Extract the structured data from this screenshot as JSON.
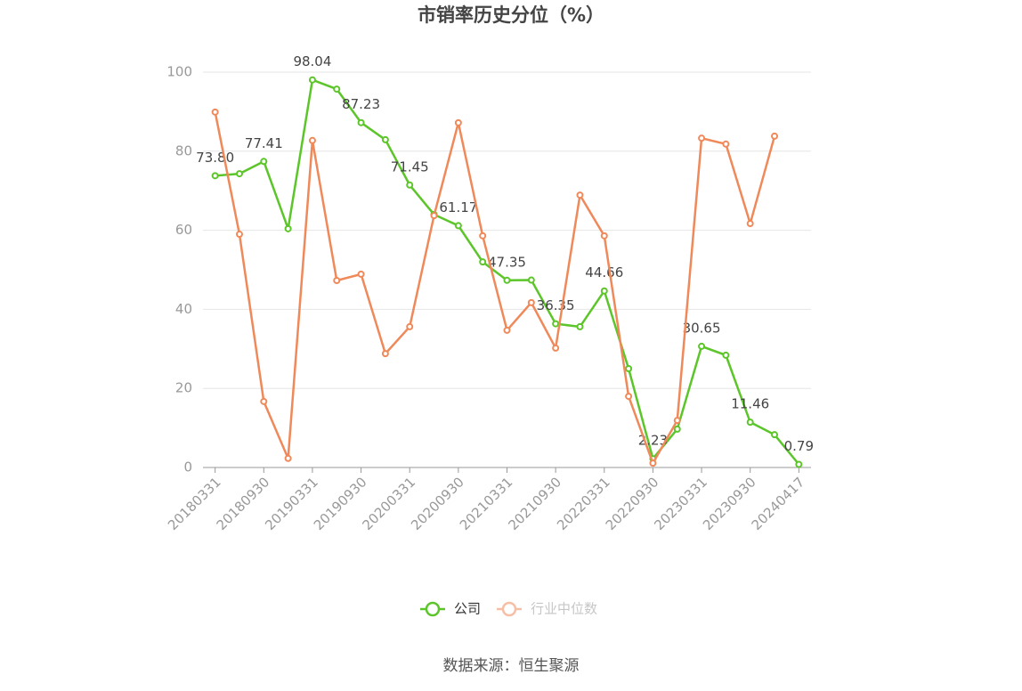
{
  "chart_data": {
    "type": "line",
    "title": "市销率历史分位（%）",
    "source": "数据来源：恒生聚源",
    "categories": [
      "20180331",
      null,
      "20180930",
      null,
      "20190331",
      null,
      "20190930",
      null,
      "20200331",
      null,
      "20200930",
      null,
      "20210331",
      null,
      "20210930",
      null,
      "20220331",
      null,
      "20220930",
      null,
      "20230331",
      null,
      "20230930",
      null,
      "20240417"
    ],
    "ylim": [
      0,
      100
    ],
    "yticks": [
      0,
      20,
      40,
      60,
      80,
      100
    ],
    "grid": true,
    "legend": "bottom",
    "series": [
      {
        "name": "公司",
        "color": "#5cc52a",
        "values": [
          73.8,
          74.3,
          77.41,
          60.4,
          98.04,
          95.7,
          87.23,
          82.9,
          71.45,
          64.0,
          61.17,
          52.0,
          47.35,
          47.4,
          36.35,
          35.6,
          44.66,
          25.0,
          2.23,
          9.7,
          30.65,
          28.4,
          11.46,
          8.3,
          0.79
        ],
        "value_labels": [
          "73.80",
          null,
          "77.41",
          null,
          "98.04",
          null,
          "87.23",
          null,
          "71.45",
          null,
          "61.17",
          null,
          "47.35",
          null,
          "36.35",
          null,
          "44.66",
          null,
          "2.23",
          null,
          "30.65",
          null,
          "11.46",
          null,
          "0.79"
        ]
      },
      {
        "name": "行业中位数",
        "color": "#f0895a",
        "values": [
          89.9,
          59.0,
          16.7,
          2.3,
          82.7,
          47.3,
          48.9,
          28.8,
          35.6,
          63.7,
          87.2,
          58.6,
          34.7,
          41.7,
          30.2,
          68.9,
          58.6,
          18.0,
          1.1,
          11.9,
          83.3,
          81.8,
          61.7,
          83.8,
          null
        ]
      }
    ]
  }
}
